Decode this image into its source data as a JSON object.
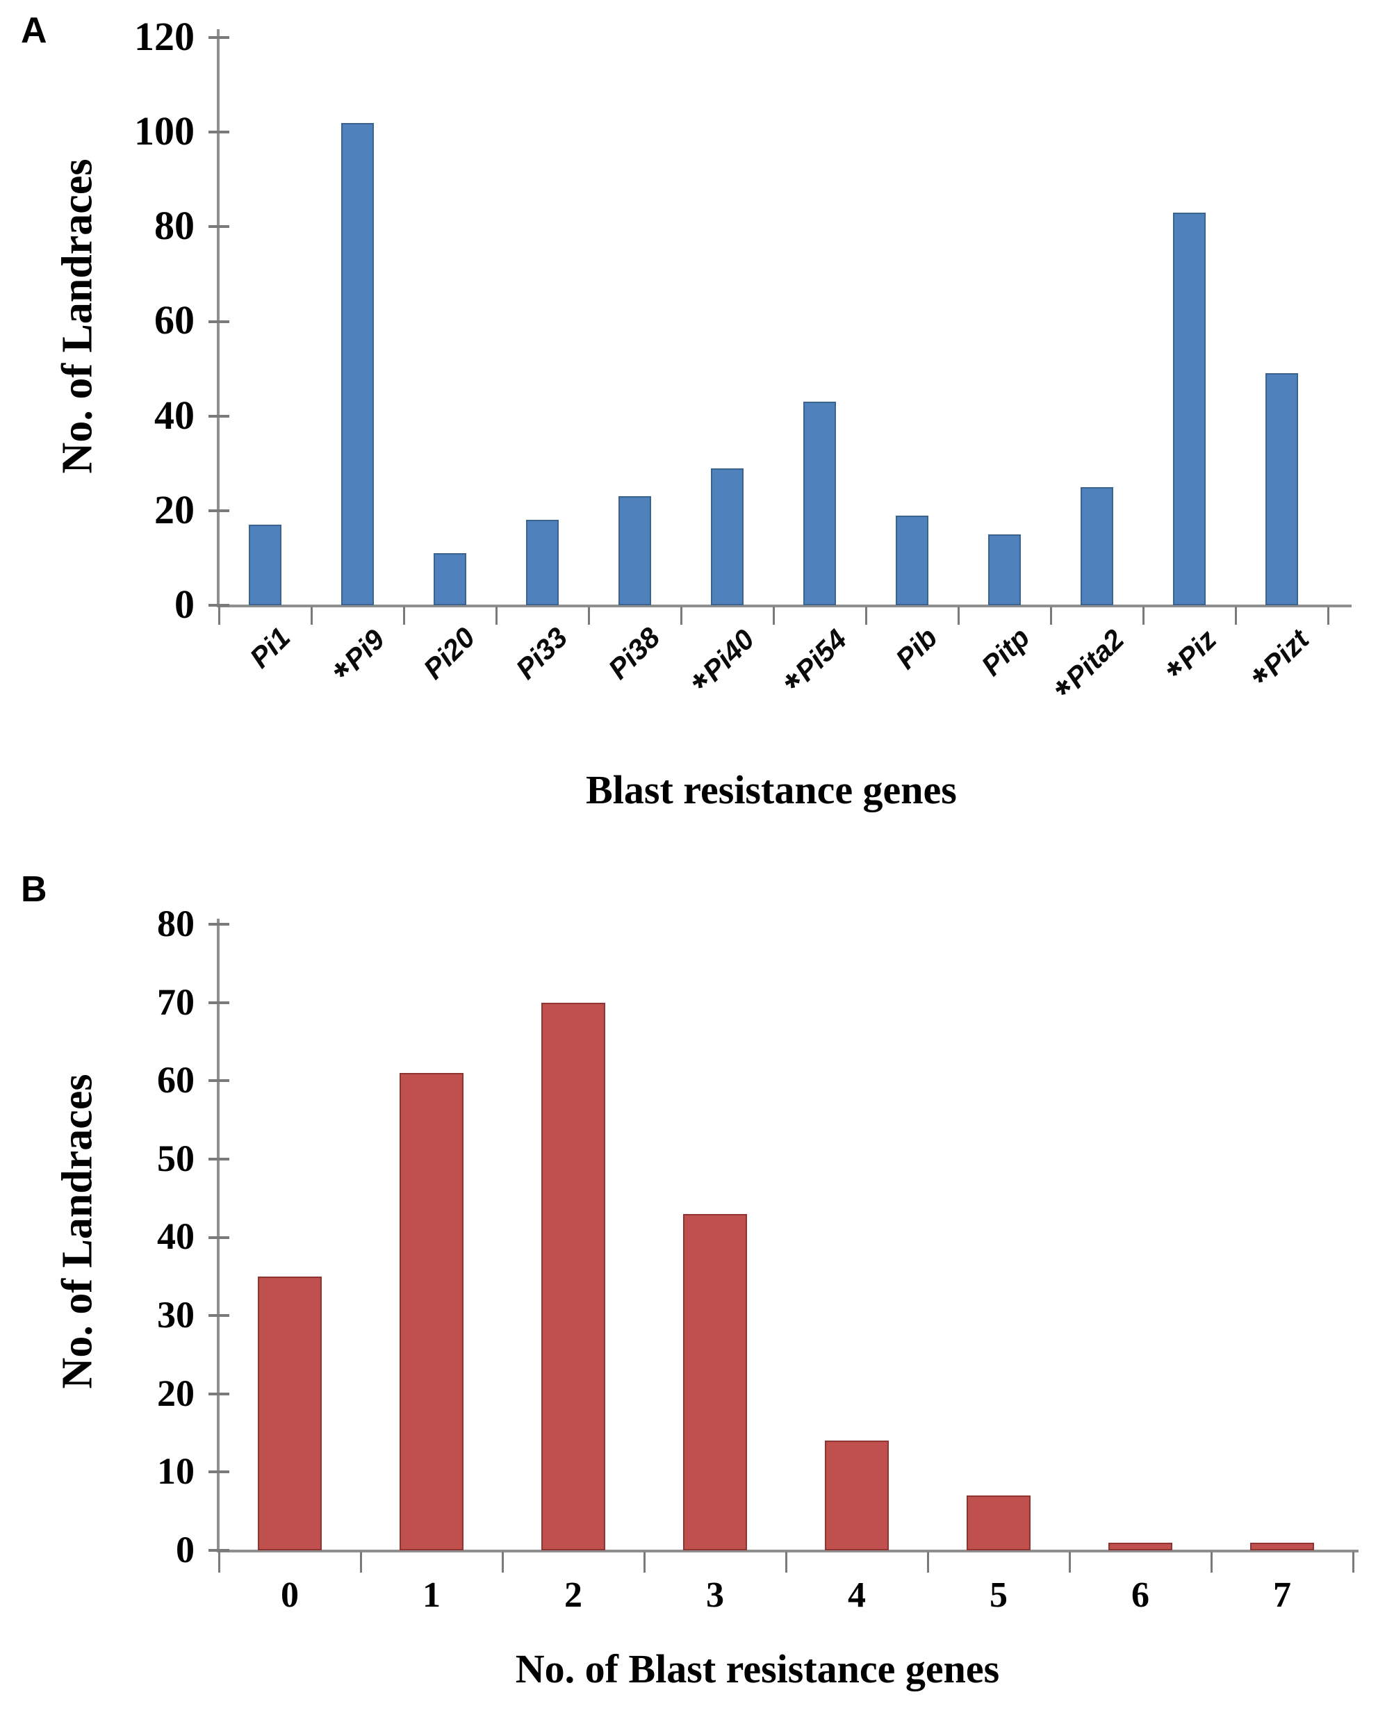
{
  "figure": {
    "background": "#ffffff"
  },
  "chart_data": [
    {
      "panel_letter": "A",
      "type": "bar",
      "title": "",
      "categories": [
        "Pi1",
        "*Pi9",
        "Pi20",
        "Pi33",
        "Pi38",
        "*Pi40",
        "*Pi54",
        "Pib",
        "Pitp",
        "*Pita2",
        "*Piz",
        "*Pizt"
      ],
      "values": [
        17,
        102,
        11,
        18,
        23,
        29,
        43,
        19,
        15,
        25,
        83,
        49
      ],
      "starred_categories": [
        "Pi9",
        "Pi40",
        "Pi54",
        "Pita2",
        "Piz",
        "Pizt"
      ],
      "xlabel": "Blast resistance genes",
      "ylabel": "No. of Landraces",
      "ylim": [
        0,
        120
      ],
      "yticks": [
        0,
        20,
        40,
        60,
        80,
        100,
        120
      ],
      "bar_color": "#4f81bd",
      "bar_border_color": "#3a648f",
      "axis_color": "#8f8f8f",
      "grid": false,
      "legend": "none"
    },
    {
      "panel_letter": "B",
      "type": "bar",
      "title": "",
      "categories": [
        "0",
        "1",
        "2",
        "3",
        "4",
        "5",
        "6",
        "7"
      ],
      "values": [
        35,
        61,
        70,
        43,
        14,
        7,
        1,
        1
      ],
      "xlabel": "No. of Blast resistance genes",
      "ylabel": "No. of Landraces",
      "ylim": [
        0,
        80
      ],
      "yticks": [
        0,
        10,
        20,
        30,
        40,
        50,
        60,
        70,
        80
      ],
      "bar_color": "#c0504d",
      "bar_border_color": "#8f3431",
      "axis_color": "#8f8f8f",
      "grid": false,
      "legend": "none"
    }
  ]
}
